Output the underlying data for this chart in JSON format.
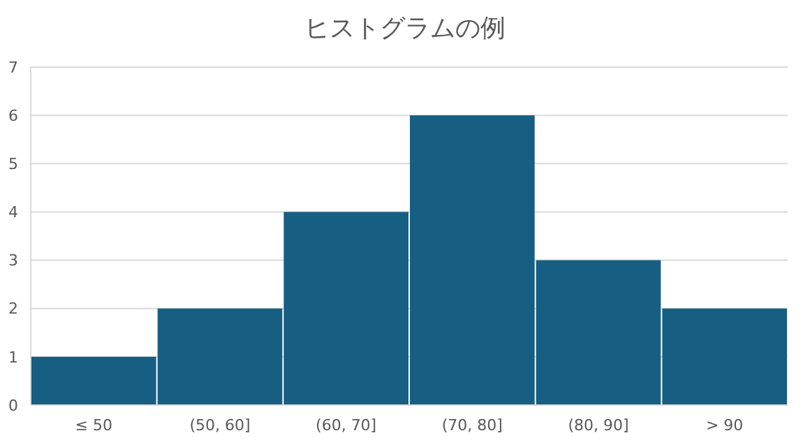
{
  "chart_data": {
    "type": "bar",
    "title": "ヒストグラムの例",
    "categories": [
      "≤ 50",
      "(50, 60]",
      "(60, 70]",
      "(70, 80]",
      "(80, 90]",
      "> 90"
    ],
    "values": [
      1,
      2,
      4,
      6,
      3,
      2
    ],
    "color": "#175e83",
    "ylim": [
      0,
      7
    ],
    "yticks": [
      0,
      1,
      2,
      3,
      4,
      5,
      6,
      7
    ],
    "grid": "y"
  }
}
